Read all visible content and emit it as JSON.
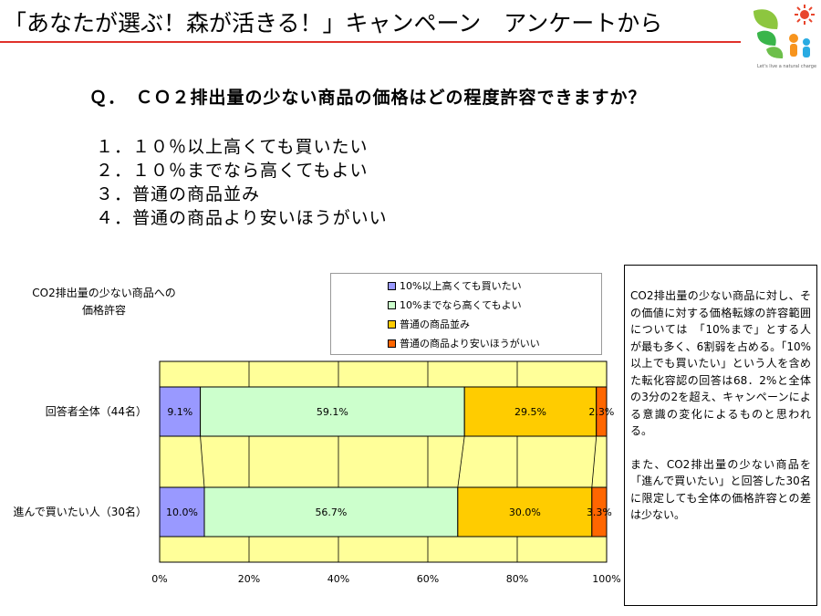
{
  "page": {
    "title": "「あなたが選ぶ！森が活きる！」キャンペーン　アンケートから",
    "logo_caption": "Let's live a natural charge"
  },
  "question": "Ｑ．　ＣＯ２排出量の少ない商品の価格はどの程度許容できますか？",
  "options": [
    "１．１０％以上高くても買いたい",
    "２．１０％までなら高くてもよい",
    "３．普通の商品並み",
    "４．普通の商品より安いほうがいい"
  ],
  "chart_data": {
    "type": "bar",
    "orientation": "horizontal-stacked-100",
    "title_lines": [
      "CO2排出量の少ない商品への",
      "価格許容"
    ],
    "categories": [
      "回答者全体（44名）",
      "進んで買いたい人（30名）"
    ],
    "series": [
      {
        "name": "10%以上高くても買いたい",
        "color": "#9999ff",
        "values": [
          9.1,
          10.0
        ],
        "labels": [
          "9.1%",
          "10.0%"
        ]
      },
      {
        "name": "10%までなら高くてもよい",
        "color": "#ccffcc",
        "values": [
          59.1,
          56.7
        ],
        "labels": [
          "59.1%",
          "56.7%"
        ]
      },
      {
        "name": "普通の商品並み",
        "color": "#ffcc00",
        "values": [
          29.5,
          30.0
        ],
        "labels": [
          "29.5%",
          "30.0%"
        ]
      },
      {
        "name": "普通の商品より安いほうがいい",
        "color": "#ff6600",
        "values": [
          2.3,
          3.3
        ],
        "labels": [
          "2.3%",
          "3.3%"
        ]
      }
    ],
    "x_ticks": [
      "0%",
      "20%",
      "40%",
      "60%",
      "80%",
      "100%"
    ],
    "xlim": [
      0,
      100
    ],
    "plot_background": "#ffff99",
    "grid": true,
    "legend_position": "top-right",
    "series_lines": true
  },
  "commentary": {
    "paragraph1": "CO2排出量の少ない商品に対し、その価値に対する価格転嫁の許容範囲については　「10%まで」とする人が最も多く、6割弱を占める。「10%以上でも買いたい」という人を含めた転化容認の回答は68．2%と全体の3分の2を超え、キャンペーンによる意識の変化によるものと思われる。",
    "paragraph2": "また、CO2排出量の少ない商品を「進んで買いたい」と回答した30名に限定しても全体の価格許容との差は少ない。"
  }
}
